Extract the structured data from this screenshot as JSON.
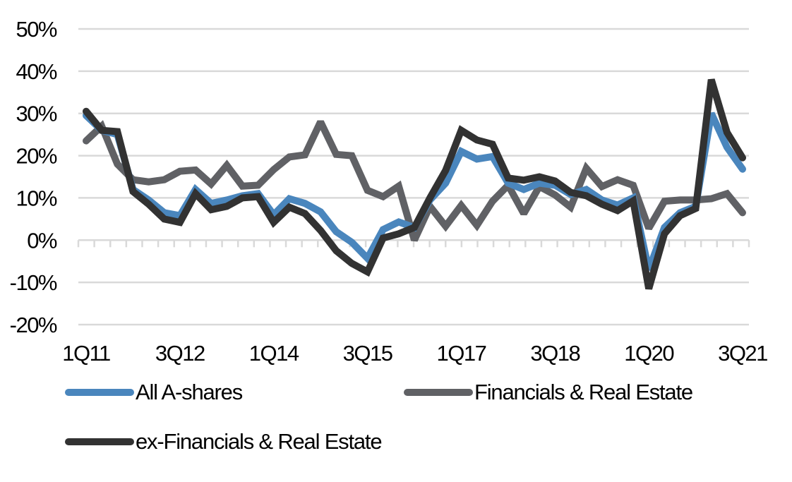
{
  "chart_data": {
    "type": "line",
    "title": "",
    "xlabel": "",
    "ylabel": "",
    "ylim": [
      -20,
      50
    ],
    "yticks": [
      50,
      40,
      30,
      20,
      10,
      0,
      -10,
      -20
    ],
    "ytick_labels": [
      "50%",
      "40%",
      "30%",
      "20%",
      "10%",
      "0%",
      "-10%",
      "-20%"
    ],
    "xtick_labels": [
      "1Q11",
      "3Q12",
      "1Q14",
      "3Q15",
      "1Q17",
      "3Q18",
      "1Q20",
      "3Q21"
    ],
    "xtick_every": 6,
    "grid": true,
    "legend_position": "bottom",
    "x": [
      "1Q11",
      "2Q11",
      "3Q11",
      "4Q11",
      "1Q12",
      "2Q12",
      "3Q12",
      "4Q12",
      "1Q13",
      "2Q13",
      "3Q13",
      "4Q13",
      "1Q14",
      "2Q14",
      "3Q14",
      "4Q14",
      "1Q15",
      "2Q15",
      "3Q15",
      "4Q15",
      "1Q16",
      "2Q16",
      "3Q16",
      "4Q16",
      "1Q17",
      "2Q17",
      "3Q17",
      "4Q17",
      "1Q18",
      "2Q18",
      "3Q18",
      "4Q18",
      "1Q19",
      "2Q19",
      "3Q19",
      "4Q19",
      "1Q20",
      "2Q20",
      "3Q20",
      "4Q20",
      "1Q21",
      "2Q21",
      "3Q21"
    ],
    "series": [
      {
        "name": "All A-shares",
        "color": "#4a86bd",
        "values": [
          29.5,
          26,
          25,
          12,
          9.5,
          6.5,
          5.8,
          12,
          8.7,
          9.5,
          10.5,
          11,
          6,
          9.8,
          8.7,
          6.7,
          2,
          -0.5,
          -4.3,
          2.5,
          4.3,
          3,
          9.5,
          13.5,
          21,
          19.2,
          19.8,
          13.5,
          12,
          13.5,
          13,
          10.8,
          12,
          9.5,
          8.3,
          10,
          -7,
          3,
          6.5,
          8,
          30,
          22,
          16.8
        ]
      },
      {
        "name": "Financials & Real Estate",
        "color": "#606165",
        "values": [
          23.5,
          27,
          18,
          14.3,
          13.8,
          14.3,
          16.3,
          16.6,
          13.3,
          17.7,
          12.8,
          13,
          16.7,
          19.7,
          20.2,
          28,
          20.3,
          20,
          11.8,
          10.3,
          12.8,
          0,
          8,
          3.3,
          8.2,
          3.5,
          9.2,
          13,
          6.3,
          12.7,
          10.7,
          7.8,
          17,
          12.7,
          14.3,
          13,
          2.8,
          9.2,
          9.5,
          9.5,
          9.8,
          11,
          6.5
        ]
      },
      {
        "name": "ex-Financials & Real Estate",
        "color": "#323232",
        "values": [
          30.5,
          26,
          25.7,
          11.5,
          8.5,
          5,
          4.2,
          11,
          7.2,
          8,
          10,
          10.3,
          4.2,
          7.8,
          6.3,
          2.3,
          -2.5,
          -5.5,
          -7.5,
          0.5,
          1.5,
          3,
          10,
          16.5,
          26,
          23.7,
          22.7,
          14.7,
          14.2,
          15,
          14,
          11.3,
          10.5,
          8.5,
          7,
          9.3,
          -11.5,
          1.5,
          5.8,
          7.5,
          38,
          25.5,
          19.5
        ]
      }
    ],
    "draw_order": [
      1,
      0,
      2
    ],
    "gridline_color": "#d9d9d9"
  }
}
